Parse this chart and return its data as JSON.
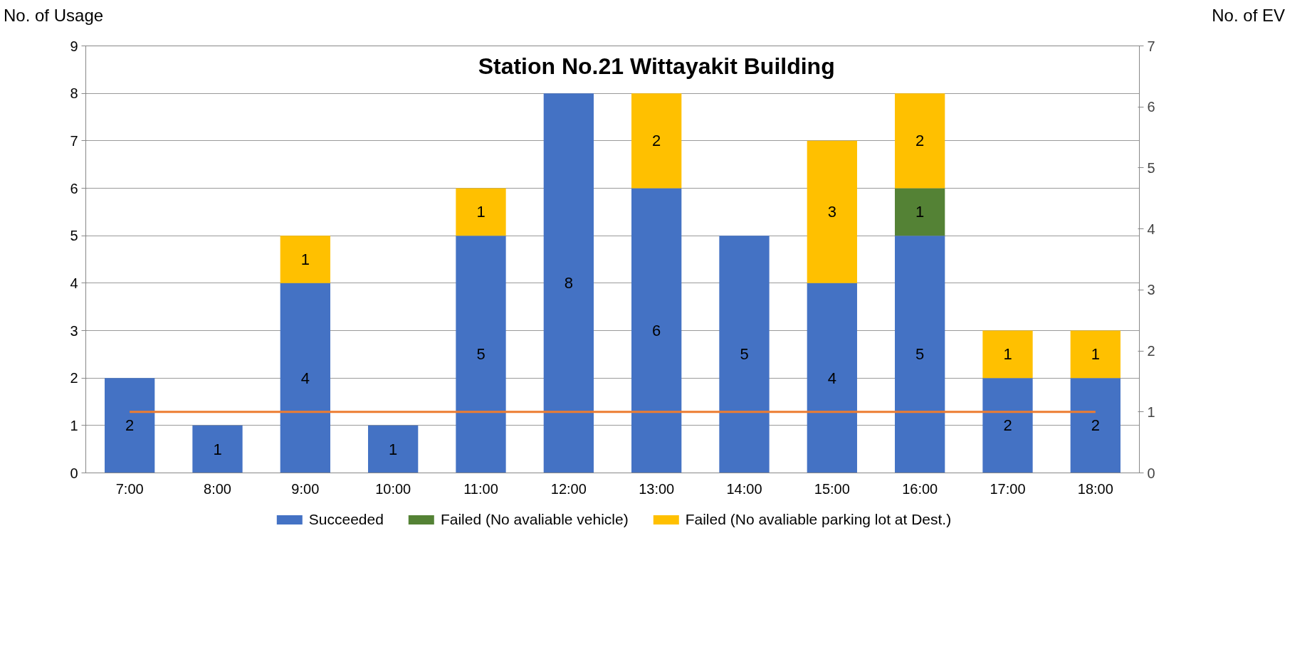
{
  "chart_data": {
    "type": "bar",
    "stacked": true,
    "title": "Station No.21 Wittayakit Building",
    "ylabel": "No. of Usage",
    "y2label": "No. of EV",
    "categories": [
      "7:00",
      "8:00",
      "9:00",
      "10:00",
      "11:00",
      "12:00",
      "13:00",
      "14:00",
      "15:00",
      "16:00",
      "17:00",
      "18:00"
    ],
    "series": [
      {
        "name": "Succeeded",
        "color": "#4472c4",
        "values": [
          2,
          1,
          4,
          1,
          5,
          8,
          6,
          5,
          4,
          5,
          2,
          2
        ],
        "value_labels": [
          "2",
          "1",
          "4",
          "1",
          "5",
          "8",
          "6",
          "5",
          "4",
          "5",
          "2",
          "2"
        ]
      },
      {
        "name": "Failed (No avaliable vehicle)",
        "color": "#548235",
        "values": [
          null,
          null,
          null,
          null,
          null,
          null,
          null,
          null,
          null,
          1,
          null,
          null
        ],
        "value_labels": [
          null,
          null,
          null,
          null,
          null,
          null,
          null,
          null,
          null,
          "1",
          null,
          null
        ]
      },
      {
        "name": "Failed (No avaliable parking lot at Dest.)",
        "color": "#ffc000",
        "values": [
          null,
          null,
          1,
          null,
          1,
          null,
          2,
          null,
          3,
          2,
          1,
          1
        ],
        "value_labels": [
          null,
          null,
          "1",
          null,
          "1",
          null,
          "2",
          null,
          "3",
          "2",
          "1",
          "1"
        ]
      },
      {
        "type": "line",
        "axis": "y2",
        "color": "#ed7d31",
        "values": [
          1,
          1,
          1,
          1,
          1,
          1,
          1,
          1,
          1,
          1,
          1,
          1
        ]
      }
    ],
    "ylim": [
      0,
      9
    ],
    "yticks": [
      0,
      1,
      2,
      3,
      4,
      5,
      6,
      7,
      8,
      9
    ],
    "y2lim": [
      0,
      7
    ],
    "y2ticks": [
      0,
      1,
      2,
      3,
      4,
      5,
      6,
      7
    ],
    "grid": "y",
    "legend": "bottom"
  }
}
